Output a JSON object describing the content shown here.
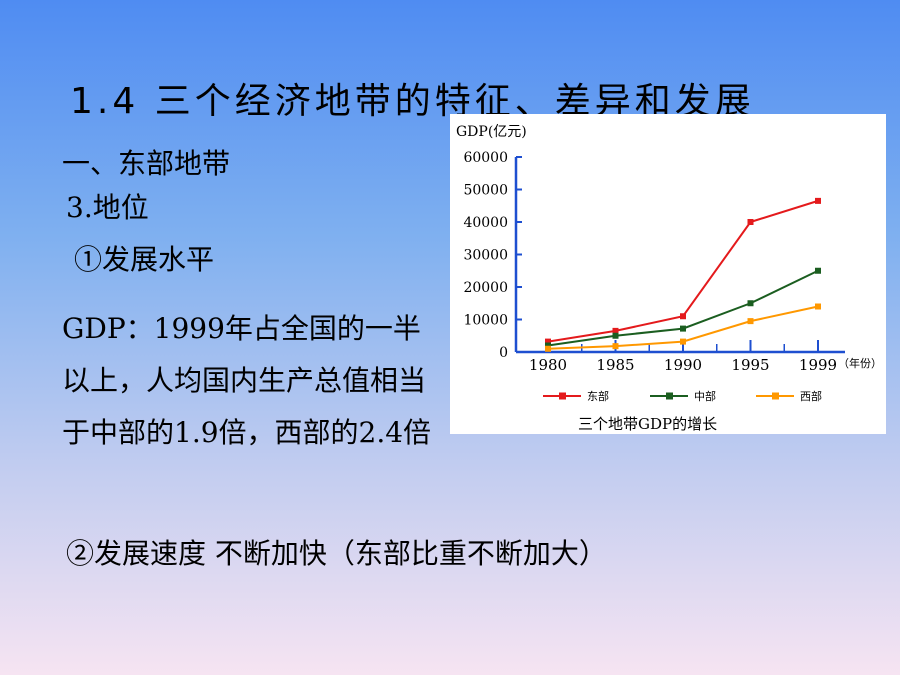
{
  "slide": {
    "title": "1.4 三个经济地带的特征、差异和发展",
    "section": "一、东部地带",
    "subsection": "3.地位",
    "point1": "①发展水平",
    "paragraph": "GDP：1999年占全国的一半以上，人均国内生产总值相当于中部的1.9倍，西部的2.4倍",
    "point2": "②发展速度 不断加快（东部比重不断加大）"
  },
  "chart_data": {
    "type": "line",
    "title": "三个地带GDP的增长",
    "xlabel": "（年份）",
    "ylabel": "GDP(亿元)",
    "x": [
      1980,
      1985,
      1990,
      1995,
      1999
    ],
    "xticks": [
      "1980",
      "1985",
      "1990",
      "1995",
      "1999"
    ],
    "yticks": [
      "0",
      "10000",
      "20000",
      "30000",
      "40000",
      "50000",
      "60000"
    ],
    "ylim": [
      0,
      60000
    ],
    "legend_position": "bottom",
    "series": [
      {
        "name": "东部",
        "color": "#e41a1c",
        "values": [
          3200,
          6500,
          11000,
          40000,
          46500
        ]
      },
      {
        "name": "中部",
        "color": "#1b5e20",
        "values": [
          2000,
          5000,
          7200,
          15000,
          25000
        ]
      },
      {
        "name": "西部",
        "color": "#ff9800",
        "values": [
          1000,
          1800,
          3200,
          9500,
          14000
        ]
      }
    ]
  }
}
